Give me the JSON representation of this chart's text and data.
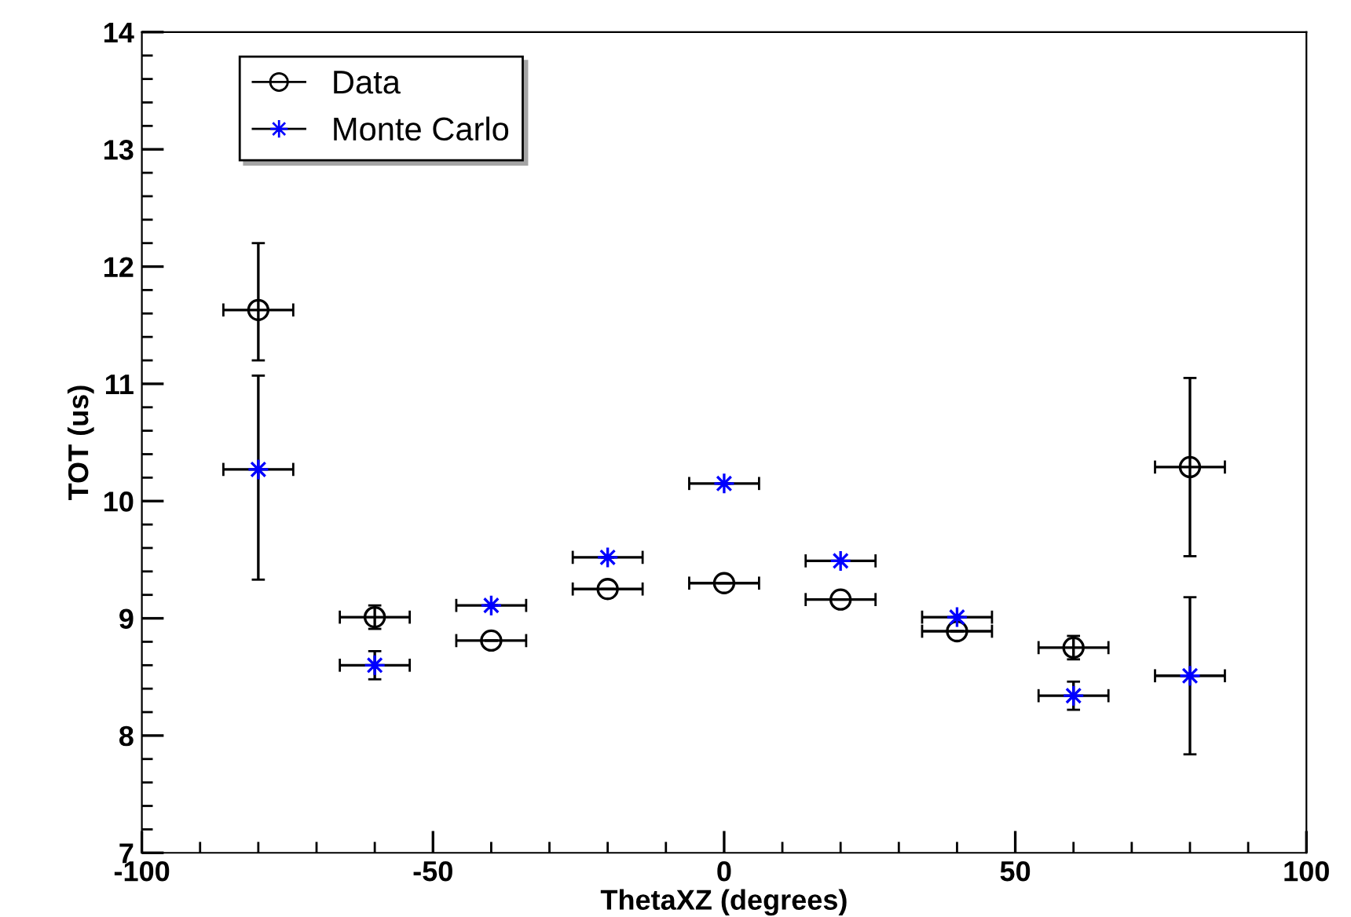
{
  "chart_data": {
    "type": "scatter",
    "xlabel": "ThetaXZ (degrees)",
    "ylabel": "TOT (us)",
    "x": [
      -80,
      -60,
      -40,
      -20,
      0,
      20,
      40,
      60,
      80
    ],
    "xlim": [
      -100,
      100
    ],
    "xticks": [
      -100,
      -50,
      0,
      50,
      100
    ],
    "ylim": [
      7,
      14
    ],
    "yticks": [
      7,
      8,
      9,
      10,
      11,
      12,
      13,
      14
    ],
    "grid": false,
    "legend": "top left",
    "series": [
      {
        "name": "Data",
        "color": "#000000",
        "marker": "circle",
        "values": [
          11.63,
          9.01,
          8.81,
          9.25,
          9.3,
          9.16,
          8.89,
          8.75,
          10.29
        ],
        "errors": [
          [
            11.2,
            12.2
          ],
          0.1,
          null,
          null,
          null,
          null,
          null,
          0.1,
          [
            9.53,
            11.05
          ]
        ],
        "xerrors": [
          6,
          6,
          6,
          6,
          6,
          6,
          6,
          6,
          6
        ]
      },
      {
        "name": "Monte Carlo",
        "color": "#0000ff",
        "marker": "star",
        "values": [
          10.27,
          8.6,
          9.11,
          9.52,
          10.15,
          9.49,
          9.01,
          8.34,
          8.51
        ],
        "errors": [
          [
            9.33,
            11.07
          ],
          0.12,
          null,
          null,
          null,
          null,
          null,
          0.12,
          [
            7.84,
            9.18
          ]
        ],
        "xerrors": [
          6,
          6,
          6,
          6,
          6,
          6,
          6,
          6,
          6
        ]
      }
    ]
  }
}
